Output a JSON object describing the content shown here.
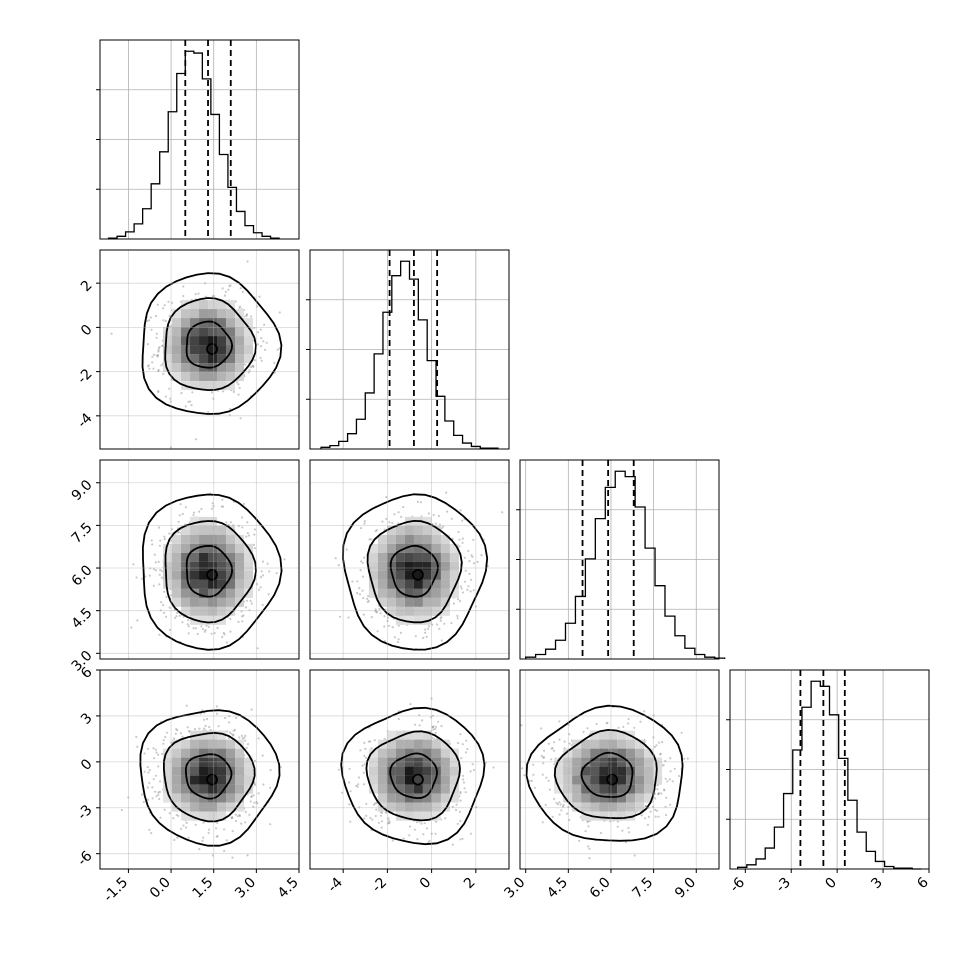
{
  "chart_data": {
    "type": "corner",
    "grid": true,
    "parameters": [
      {
        "index": 0,
        "range": [
          -2.5,
          4.5
        ],
        "ticks": [
          "-1.5",
          "0.0",
          "1.5",
          "3.0",
          "4.5"
        ],
        "tick_values": [
          -1.5,
          0.0,
          1.5,
          3.0,
          4.5
        ],
        "quantiles": [
          0.5,
          1.3,
          2.1
        ],
        "mean": 1.3,
        "std": 0.8
      },
      {
        "index": 1,
        "range": [
          -5.5,
          3.5
        ],
        "ticks": [
          "-4",
          "-2",
          "0",
          "2"
        ],
        "tick_values": [
          -4,
          -2,
          0,
          2
        ],
        "quantiles": [
          -1.9,
          -0.8,
          0.25
        ],
        "mean": -0.8,
        "std": 1.05
      },
      {
        "index": 2,
        "range": [
          2.8,
          9.8
        ],
        "ticks": [
          "3.0",
          "4.5",
          "6.0",
          "7.5",
          "9.0"
        ],
        "tick_values": [
          3.0,
          4.5,
          6.0,
          7.5,
          9.0
        ],
        "quantiles": [
          5.0,
          5.9,
          6.8
        ],
        "mean": 5.9,
        "std": 0.9
      },
      {
        "index": 3,
        "range": [
          -7,
          6
        ],
        "ticks": [
          "-6",
          "-3",
          "0",
          "3",
          "6"
        ],
        "tick_values": [
          -6,
          -3,
          0,
          3,
          6
        ],
        "quantiles": [
          -2.4,
          -0.9,
          0.5
        ],
        "mean": -0.9,
        "std": 1.45
      }
    ],
    "histograms": [
      {
        "param": 0,
        "bins_start": -2.2,
        "bin_width": 0.3,
        "counts": [
          1,
          3,
          8,
          17,
          34,
          62,
          98,
          143,
          186,
          211,
          209,
          180,
          140,
          95,
          58,
          31,
          15,
          7,
          3,
          1
        ]
      },
      {
        "param": 1,
        "bins_start": -5.0,
        "bin_width": 0.4,
        "counts": [
          2,
          4,
          9,
          18,
          35,
          66,
          112,
          161,
          204,
          221,
          200,
          152,
          104,
          62,
          33,
          16,
          7,
          3,
          1,
          1
        ]
      },
      {
        "param": 2,
        "bins_start": 3.0,
        "bin_width": 0.35,
        "counts": [
          2,
          5,
          11,
          21,
          40,
          70,
          112,
          157,
          192,
          210,
          204,
          170,
          124,
          82,
          48,
          26,
          12,
          5,
          2,
          1
        ]
      },
      {
        "param": 3,
        "bins_start": -6.5,
        "bin_width": 0.6,
        "counts": [
          2,
          5,
          12,
          25,
          50,
          90,
          142,
          193,
          224,
          218,
          184,
          132,
          82,
          44,
          21,
          9,
          3,
          1,
          1,
          0
        ]
      }
    ],
    "hist_y_ticks": [
      0.25,
      0.5,
      0.75
    ],
    "annotation": ""
  }
}
